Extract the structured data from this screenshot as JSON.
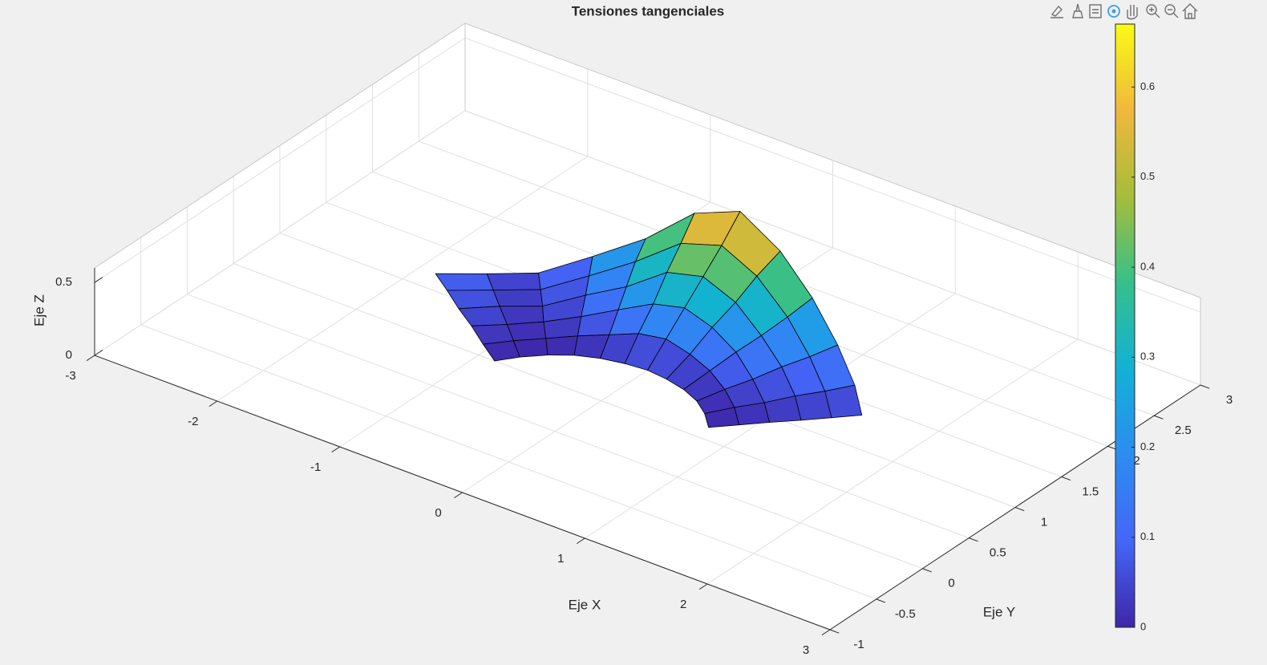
{
  "chart_data": {
    "type": "surface",
    "title": "Tensiones tangenciales",
    "xlabel": "Eje X",
    "ylabel": "Eje Y",
    "zlabel": "Eje Z",
    "x": [
      [
        0.77,
        0.64,
        0.5,
        0.34,
        0.17,
        0,
        -0.17,
        -0.34,
        -0.5,
        -0.64,
        -0.77,
        -0.87
      ],
      [
        0.92,
        0.77,
        0.6,
        0.41,
        0.21,
        0,
        -0.21,
        -0.41,
        -0.6,
        -0.77,
        -0.92,
        -1.04
      ],
      [
        1.07,
        0.9,
        0.7,
        0.48,
        0.24,
        0,
        -0.24,
        -0.48,
        -0.7,
        -0.9,
        -1.07,
        -1.21
      ],
      [
        1.23,
        1.03,
        0.8,
        0.55,
        0.28,
        0,
        -0.28,
        -0.55,
        -0.8,
        -1.03,
        -1.23,
        -1.39
      ],
      [
        1.38,
        1.16,
        0.9,
        0.62,
        0.31,
        0,
        -0.31,
        -0.62,
        -0.9,
        -1.16,
        -1.38,
        -1.56
      ],
      [
        1.53,
        1.29,
        1,
        0.68,
        0.35,
        0,
        -0.35,
        -0.68,
        -1,
        -1.29,
        -1.53,
        -1.73
      ]
    ],
    "y": [
      [
        0.64,
        0.77,
        0.87,
        0.94,
        0.98,
        1,
        0.98,
        0.94,
        0.87,
        0.77,
        0.64,
        0.5
      ],
      [
        0.77,
        0.92,
        1.04,
        1.13,
        1.18,
        1.2,
        1.18,
        1.13,
        1.04,
        0.92,
        0.77,
        0.6
      ],
      [
        0.9,
        1.07,
        1.21,
        1.32,
        1.38,
        1.4,
        1.38,
        1.32,
        1.21,
        1.07,
        0.9,
        0.7
      ],
      [
        1.03,
        1.23,
        1.39,
        1.5,
        1.58,
        1.6,
        1.58,
        1.5,
        1.39,
        1.23,
        1.03,
        0.8
      ],
      [
        1.16,
        1.38,
        1.56,
        1.69,
        1.77,
        1.8,
        1.77,
        1.69,
        1.56,
        1.38,
        1.16,
        0.9
      ],
      [
        1.29,
        1.53,
        1.73,
        1.88,
        1.97,
        2,
        1.97,
        1.88,
        1.73,
        1.53,
        1.29,
        1
      ]
    ],
    "z": [
      [
        0,
        0,
        0,
        0,
        0,
        0,
        0,
        0,
        0,
        0,
        0,
        0
      ],
      [
        0.01,
        0.02,
        0.04,
        0.07,
        0.1,
        0.13,
        0.11,
        0.06,
        0.03,
        0.01,
        0.01,
        0.02
      ],
      [
        0.02,
        0.03,
        0.07,
        0.14,
        0.21,
        0.26,
        0.22,
        0.13,
        0.06,
        0.02,
        0.02,
        0.05
      ],
      [
        0.03,
        0.05,
        0.11,
        0.2,
        0.31,
        0.39,
        0.34,
        0.19,
        0.1,
        0.02,
        0.04,
        0.07
      ],
      [
        0.04,
        0.06,
        0.14,
        0.27,
        0.42,
        0.52,
        0.45,
        0.26,
        0.13,
        0.03,
        0.05,
        0.1
      ],
      [
        0.05,
        0.08,
        0.18,
        0.34,
        0.52,
        0.67,
        0.56,
        0.32,
        0.16,
        0.04,
        0.06,
        0.12
      ]
    ],
    "xlim": [
      -3,
      3
    ],
    "ylim": [
      -1,
      3
    ],
    "zlim": [
      0,
      0.6
    ],
    "xticks": [
      -3,
      -2,
      -1,
      0,
      1,
      2,
      3
    ],
    "yticks": [
      -1,
      -0.5,
      0,
      0.5,
      1,
      1.5,
      2,
      2.5,
      3
    ],
    "zticks": [
      0,
      0.5
    ],
    "grid": true,
    "edge_color": "#000000",
    "colormap": [
      "#3e26a8",
      "#4466f8",
      "#2d8cf2",
      "#12b1d5",
      "#35c08a",
      "#a6bd3a",
      "#f0b83c",
      "#f9fb15"
    ],
    "colorbar": {
      "clim": [
        0,
        0.67
      ],
      "ticks": [
        0,
        0.1,
        0.2,
        0.3,
        0.4,
        0.5,
        0.6
      ]
    }
  }
}
